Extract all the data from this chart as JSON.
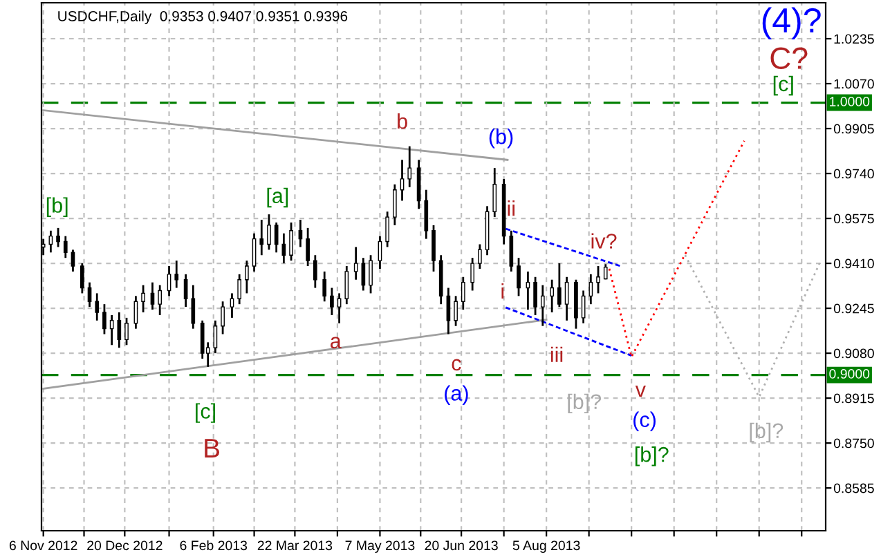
{
  "chart_data": {
    "type": "candlestick",
    "title": "USDCHF,Daily  0.9353 0.9407 0.9351 0.9396",
    "x": [
      "2012-11-06",
      "2012-11-10",
      "2012-11-14",
      "2012-11-18",
      "2012-11-22",
      "2012-11-27",
      "2012-12-01",
      "2012-12-05",
      "2012-12-09",
      "2012-12-13",
      "2012-12-17",
      "2012-12-21",
      "2012-12-26",
      "2012-12-30",
      "2013-01-04",
      "2013-01-08",
      "2013-01-13",
      "2013-01-17",
      "2013-01-22",
      "2013-01-26",
      "2013-01-31",
      "2013-02-03",
      "2013-02-07",
      "2013-02-11",
      "2013-02-16",
      "2013-02-20",
      "2013-02-24",
      "2013-02-28",
      "2013-03-04",
      "2013-03-08",
      "2013-03-12",
      "2013-03-16",
      "2013-03-20",
      "2013-03-25",
      "2013-03-29",
      "2013-04-02",
      "2013-04-07",
      "2013-04-11",
      "2013-04-15",
      "2013-04-19",
      "2013-04-24",
      "2013-04-28",
      "2013-05-02",
      "2013-05-07",
      "2013-05-11",
      "2013-05-15",
      "2013-05-19",
      "2013-05-23",
      "2013-05-28",
      "2013-06-01",
      "2013-06-05",
      "2013-06-09",
      "2013-06-13",
      "2013-06-17",
      "2013-06-21",
      "2013-06-26",
      "2013-06-30",
      "2013-07-04",
      "2013-07-08",
      "2013-07-13",
      "2013-07-17",
      "2013-07-21",
      "2013-07-26",
      "2013-07-30",
      "2013-08-03",
      "2013-08-08",
      "2013-08-12",
      "2013-08-16",
      "2013-08-21",
      "2013-08-25",
      "2013-08-29",
      "2013-09-02",
      "2013-09-06"
    ],
    "ohlc": [
      [
        0.947,
        0.95,
        0.944,
        0.948
      ],
      [
        0.948,
        0.953,
        0.945,
        0.951
      ],
      [
        0.951,
        0.954,
        0.947,
        0.949
      ],
      [
        0.949,
        0.951,
        0.943,
        0.945
      ],
      [
        0.945,
        0.946,
        0.938,
        0.94
      ],
      [
        0.94,
        0.941,
        0.93,
        0.932
      ],
      [
        0.932,
        0.934,
        0.925,
        0.927
      ],
      [
        0.927,
        0.93,
        0.92,
        0.923
      ],
      [
        0.923,
        0.926,
        0.915,
        0.917
      ],
      [
        0.917,
        0.922,
        0.911,
        0.92
      ],
      [
        0.92,
        0.923,
        0.91,
        0.913
      ],
      [
        0.913,
        0.921,
        0.911,
        0.919
      ],
      [
        0.919,
        0.929,
        0.917,
        0.927
      ],
      [
        0.927,
        0.933,
        0.923,
        0.93
      ],
      [
        0.93,
        0.934,
        0.924,
        0.926
      ],
      [
        0.926,
        0.933,
        0.922,
        0.931
      ],
      [
        0.931,
        0.94,
        0.929,
        0.937
      ],
      [
        0.937,
        0.942,
        0.932,
        0.935
      ],
      [
        0.935,
        0.937,
        0.925,
        0.928
      ],
      [
        0.928,
        0.933,
        0.917,
        0.919
      ],
      [
        0.919,
        0.92,
        0.906,
        0.908
      ],
      [
        0.908,
        0.912,
        0.903,
        0.91
      ],
      [
        0.91,
        0.92,
        0.908,
        0.918
      ],
      [
        0.918,
        0.927,
        0.915,
        0.925
      ],
      [
        0.925,
        0.93,
        0.921,
        0.928
      ],
      [
        0.928,
        0.937,
        0.926,
        0.935
      ],
      [
        0.935,
        0.942,
        0.93,
        0.94
      ],
      [
        0.94,
        0.952,
        0.938,
        0.95
      ],
      [
        0.95,
        0.957,
        0.944,
        0.948
      ],
      [
        0.948,
        0.959,
        0.946,
        0.955
      ],
      [
        0.955,
        0.956,
        0.945,
        0.948
      ],
      [
        0.948,
        0.952,
        0.941,
        0.944
      ],
      [
        0.944,
        0.956,
        0.942,
        0.953
      ],
      [
        0.953,
        0.957,
        0.947,
        0.95
      ],
      [
        0.95,
        0.954,
        0.94,
        0.942
      ],
      [
        0.942,
        0.944,
        0.932,
        0.935
      ],
      [
        0.935,
        0.938,
        0.927,
        0.929
      ],
      [
        0.929,
        0.932,
        0.922,
        0.925
      ],
      [
        0.925,
        0.93,
        0.919,
        0.928
      ],
      [
        0.928,
        0.94,
        0.926,
        0.938
      ],
      [
        0.938,
        0.947,
        0.935,
        0.941
      ],
      [
        0.941,
        0.943,
        0.931,
        0.933
      ],
      [
        0.933,
        0.944,
        0.93,
        0.942
      ],
      [
        0.942,
        0.951,
        0.939,
        0.949
      ],
      [
        0.949,
        0.96,
        0.947,
        0.958
      ],
      [
        0.958,
        0.97,
        0.955,
        0.968
      ],
      [
        0.968,
        0.979,
        0.964,
        0.972
      ],
      [
        0.972,
        0.984,
        0.969,
        0.976
      ],
      [
        0.976,
        0.979,
        0.961,
        0.964
      ],
      [
        0.964,
        0.968,
        0.95,
        0.953
      ],
      [
        0.953,
        0.955,
        0.938,
        0.942
      ],
      [
        0.942,
        0.944,
        0.926,
        0.929
      ],
      [
        0.929,
        0.932,
        0.915,
        0.92
      ],
      [
        0.92,
        0.929,
        0.918,
        0.927
      ],
      [
        0.927,
        0.936,
        0.924,
        0.934
      ],
      [
        0.934,
        0.943,
        0.931,
        0.941
      ],
      [
        0.941,
        0.948,
        0.939,
        0.946
      ],
      [
        0.946,
        0.962,
        0.944,
        0.96
      ],
      [
        0.96,
        0.976,
        0.958,
        0.97
      ],
      [
        0.97,
        0.972,
        0.948,
        0.951
      ],
      [
        0.951,
        0.953,
        0.938,
        0.94
      ],
      [
        0.94,
        0.943,
        0.929,
        0.932
      ],
      [
        0.932,
        0.938,
        0.924,
        0.934
      ],
      [
        0.934,
        0.936,
        0.922,
        0.925
      ],
      [
        0.925,
        0.933,
        0.918,
        0.929
      ],
      [
        0.929,
        0.935,
        0.923,
        0.932
      ],
      [
        0.932,
        0.941,
        0.925,
        0.926
      ],
      [
        0.926,
        0.936,
        0.92,
        0.934
      ],
      [
        0.934,
        0.935,
        0.917,
        0.921
      ],
      [
        0.921,
        0.931,
        0.919,
        0.929
      ],
      [
        0.929,
        0.937,
        0.926,
        0.934
      ],
      [
        0.934,
        0.94,
        0.93,
        0.936
      ],
      [
        0.9353,
        0.9407,
        0.9351,
        0.9396
      ]
    ],
    "color": "#000000",
    "series": [
      {
        "type": "line",
        "color": "#a0a0a0",
        "line_style": "solid",
        "x": [
          "2012-11-06",
          "2013-07-15"
        ],
        "values": [
          0.9972,
          0.979
        ]
      },
      {
        "type": "line",
        "color": "#a0a0a0",
        "line_style": "solid",
        "x": [
          "2012-11-06",
          "2013-08-05"
        ],
        "values": [
          0.895,
          0.9203
        ]
      },
      {
        "type": "line",
        "color": "#0000ff",
        "line_style": "dashed",
        "x": [
          "2013-07-14",
          "2013-09-14"
        ],
        "values": [
          0.9537,
          0.94
        ]
      },
      {
        "type": "line",
        "color": "#0000ff",
        "line_style": "dashed",
        "x": [
          "2013-07-14",
          "2013-09-20"
        ],
        "values": [
          0.9248,
          0.9071
        ]
      },
      {
        "type": "line",
        "color": "#ff0000",
        "line_style": "dotted",
        "x": [
          "2013-09-08",
          "2013-09-20",
          "2013-11-20"
        ],
        "values": [
          0.939,
          0.9066,
          0.986
        ]
      },
      {
        "type": "line",
        "color": "#b0b0b0",
        "line_style": "dotted",
        "x": [
          "2013-10-19",
          "2013-11-28",
          "2013-12-31"
        ],
        "values": [
          0.944,
          0.8919,
          0.9415
        ]
      }
    ],
    "ref_lines": [
      {
        "axis": "y",
        "value": 1.0,
        "label": "1.0000",
        "color": "#008000",
        "line_style": "dashed"
      },
      {
        "axis": "y",
        "value": 0.9,
        "label": "0.9000",
        "color": "#008000",
        "line_style": "dashed"
      }
    ],
    "annotations": [
      "[b]",
      "[a]",
      "b",
      "(b)",
      "ii",
      "iv?",
      "i",
      "iii",
      "a",
      "c",
      "(a)",
      "[c]",
      "B",
      "[b]?",
      "v",
      "(c)",
      "[b]?",
      "[b]?",
      "(4)?",
      "C?",
      "[c]"
    ],
    "xlim": [
      "2012-11-05",
      "2014-01-03"
    ],
    "xticks": [
      {
        "value": "2012-11-06",
        "label": "6 Nov 2012"
      },
      {
        "value": "2012-11-28",
        "label": null
      },
      {
        "value": "2012-12-20",
        "label": "20 Dec 2012"
      },
      {
        "value": "2013-01-13",
        "label": null
      },
      {
        "value": "2013-02-06",
        "label": "6 Feb 2013"
      },
      {
        "value": "2013-02-28",
        "label": null
      },
      {
        "value": "2013-03-22",
        "label": "22 Mar 2013"
      },
      {
        "value": "2013-04-14",
        "label": null
      },
      {
        "value": "2013-05-07",
        "label": "7 May 2013"
      },
      {
        "value": "2013-05-29",
        "label": null
      },
      {
        "value": "2013-06-20",
        "label": "20 Jun 2013"
      },
      {
        "value": "2013-07-13",
        "label": null
      },
      {
        "value": "2013-08-05",
        "label": "5 Aug 2013"
      },
      {
        "value": "2013-08-28",
        "label": null
      },
      {
        "value": "2013-09-20",
        "label": null
      },
      {
        "value": "2013-10-13",
        "label": null
      },
      {
        "value": "2013-11-05",
        "label": null
      },
      {
        "value": "2013-11-28",
        "label": null
      },
      {
        "value": "2013-12-21",
        "label": null
      }
    ],
    "ylim": [
      0.8428,
      1.0367
    ],
    "yticks": [
      {
        "value": 0.8585,
        "label": "0.8585"
      },
      {
        "value": 0.875,
        "label": "0.8750"
      },
      {
        "value": 0.8915,
        "label": "0.8915"
      },
      {
        "value": 0.908,
        "label": "0.9080"
      },
      {
        "value": 0.9245,
        "label": "0.9245"
      },
      {
        "value": 0.941,
        "label": "0.9410"
      },
      {
        "value": 0.9575,
        "label": "0.9575"
      },
      {
        "value": 0.974,
        "label": "0.9740"
      },
      {
        "value": 0.9905,
        "label": "0.9905"
      },
      {
        "value": 1.007,
        "label": "1.0070"
      },
      {
        "value": 1.0235,
        "label": "1.0235"
      }
    ],
    "grid": true
  }
}
